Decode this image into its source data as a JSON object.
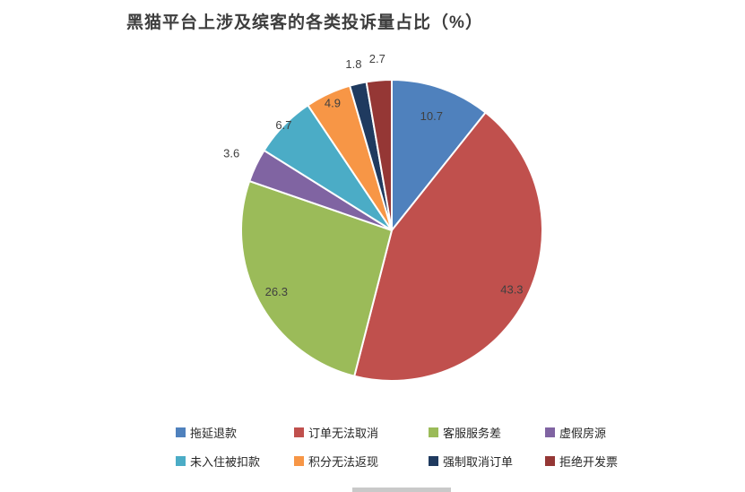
{
  "chart_data": {
    "type": "pie",
    "title": "黑猫平台上涉及缤客的各类投诉量占比（%）",
    "start_angle_deg": 0,
    "direction": "clockwise",
    "legend_position": "bottom",
    "legend_columns": 4,
    "slices": [
      {
        "label": "拖延退款",
        "value": 10.7,
        "color": "#4F81BD",
        "label_r": 0.8
      },
      {
        "label": "订单无法取消",
        "value": 43.3,
        "color": "#C0504D",
        "label_r": 0.89
      },
      {
        "label": "客服服务差",
        "value": 26.3,
        "color": "#9BBB59",
        "label_r": 0.87
      },
      {
        "label": "虚假房源",
        "value": 3.6,
        "color": "#8064A2",
        "label_r": 1.18
      },
      {
        "label": "未入住被扣款",
        "value": 6.7,
        "color": "#4BACC6",
        "label_r": 1.0
      },
      {
        "label": "积分无法返现",
        "value": 4.9,
        "color": "#F79646",
        "label_r": 0.93
      },
      {
        "label": "强制取消订单",
        "value": 1.8,
        "color": "#1F3A5F",
        "label_r": 1.13
      },
      {
        "label": "拒绝开发票",
        "value": 2.7,
        "color": "#953735",
        "label_r": 1.14
      }
    ]
  }
}
